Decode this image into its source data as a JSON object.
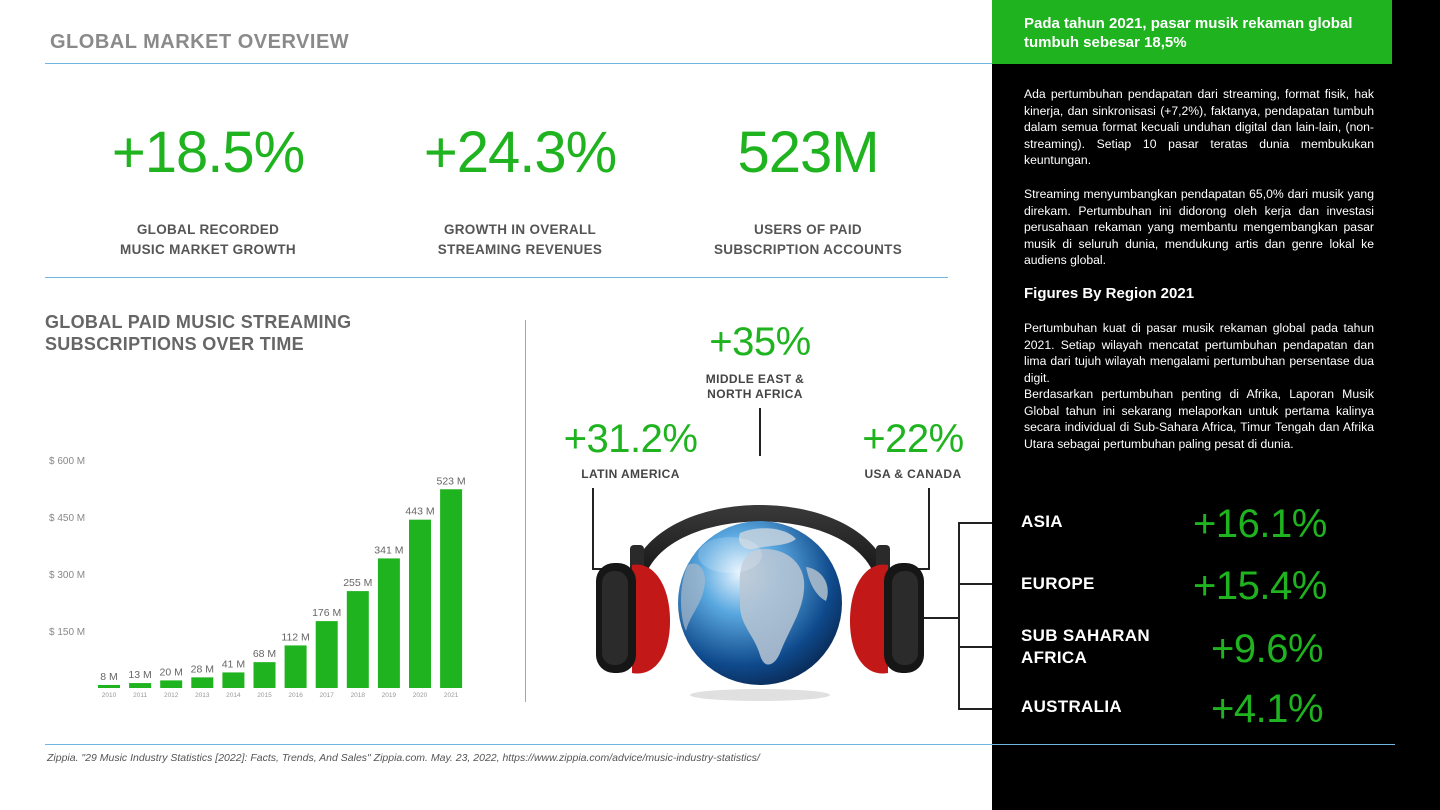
{
  "header": {
    "title": "GLOBAL MARKET OVERVIEW"
  },
  "stats": [
    {
      "value": "+18.5%",
      "label_line1": "GLOBAL RECORDED",
      "label_line2": "MUSIC MARKET GROWTH"
    },
    {
      "value": "+24.3%",
      "label_line1": "GROWTH IN OVERALL",
      "label_line2": "STREAMING REVENUES"
    },
    {
      "value": "523M",
      "label_line1": "USERS OF PAID",
      "label_line2": "SUBSCRIPTION ACCOUNTS"
    }
  ],
  "chart_section": {
    "title_line1": "GLOBAL PAID MUSIC STREAMING",
    "title_line2": "SUBSCRIPTIONS OVER TIME"
  },
  "chart_data": {
    "type": "bar",
    "title": "GLOBAL PAID MUSIC STREAMING SUBSCRIPTIONS OVER TIME",
    "categories": [
      "2010",
      "2011",
      "2012",
      "2013",
      "2014",
      "2015",
      "2016",
      "2017",
      "2018",
      "2019",
      "2020",
      "2021"
    ],
    "values": [
      8,
      13,
      20,
      28,
      41,
      68,
      112,
      176,
      255,
      341,
      443,
      523
    ],
    "value_labels": [
      "8 M",
      "13 M",
      "20 M",
      "28 M",
      "41 M",
      "68 M",
      "112 M",
      "176 M",
      "255 M",
      "341 M",
      "443 M",
      "523 M"
    ],
    "y_ticks": [
      150,
      300,
      450,
      600
    ],
    "y_tick_labels": [
      "$ 150 M",
      "$ 300 M",
      "$ 450 M",
      "$ 600 M"
    ],
    "ylim": [
      0,
      600
    ],
    "bar_color": "#1fb31f",
    "grid": false
  },
  "regions": {
    "mena": {
      "value": "+35%",
      "label_line1": "MIDDLE EAST &",
      "label_line2": "NORTH AFRICA"
    },
    "latam": {
      "value": "+31.2%",
      "label": "LATIN AMERICA"
    },
    "usca": {
      "value": "+22%",
      "label": "USA & CANADA"
    }
  },
  "sidebar": {
    "highlight": "Pada tahun 2021, pasar musik rekaman global tumbuh sebesar 18,5%",
    "para1": "Ada pertumbuhan pendapatan dari streaming, format fisik, hak kinerja, dan sinkronisasi (+7,2%), faktanya, pendapatan tumbuh dalam semua format kecuali unduhan digital dan lain-lain, (non-streaming). Setiap 10 pasar teratas dunia membukukan keuntungan.",
    "para2": "Streaming menyumbangkan pendapatan 65,0% dari musik yang direkam. Pertumbuhan ini didorong oleh kerja dan investasi perusahaan rekaman yang membantu mengembangkan pasar musik di seluruh dunia, mendukung artis dan genre lokal ke audiens global.",
    "subheading": "Figures By Region 2021",
    "para3": "Pertumbuhan kuat di pasar musik rekaman global pada tahun 2021. Setiap wilayah mencatat pertumbuhan pendapatan dan lima dari tujuh wilayah mengalami pertumbuhan persentase dua digit.",
    "para4": "Berdasarkan pertumbuhan penting di Afrika, Laporan Musik Global tahun ini sekarang melaporkan untuk pertama kalinya secara individual di Sub-Sahara Africa, Timur Tengah dan Afrika Utara sebagai pertumbuhan paling pesat di dunia."
  },
  "region_list": [
    {
      "label_line1": "ASIA",
      "label_line2": "",
      "value": "+16.1%"
    },
    {
      "label_line1": "EUROPE",
      "label_line2": "",
      "value": "+15.4%"
    },
    {
      "label_line1": "SUB SAHARAN",
      "label_line2": "AFRICA",
      "value": "+9.6%"
    },
    {
      "label_line1": "AUSTRALIA",
      "label_line2": "",
      "value": "+4.1%"
    }
  ],
  "footer": "Zippia. \"29 Music Industry Statistics [2022]: Facts, Trends, And Sales\" Zippia.com. May. 23, 2022, https://www.zippia.com/advice/music-industry-statistics/",
  "colors": {
    "accent_green": "#1fb31f",
    "rule_blue": "#6fb7e0",
    "sidebar_bg": "#000000"
  },
  "icons": {
    "illustration": "headphones-globe-icon"
  }
}
